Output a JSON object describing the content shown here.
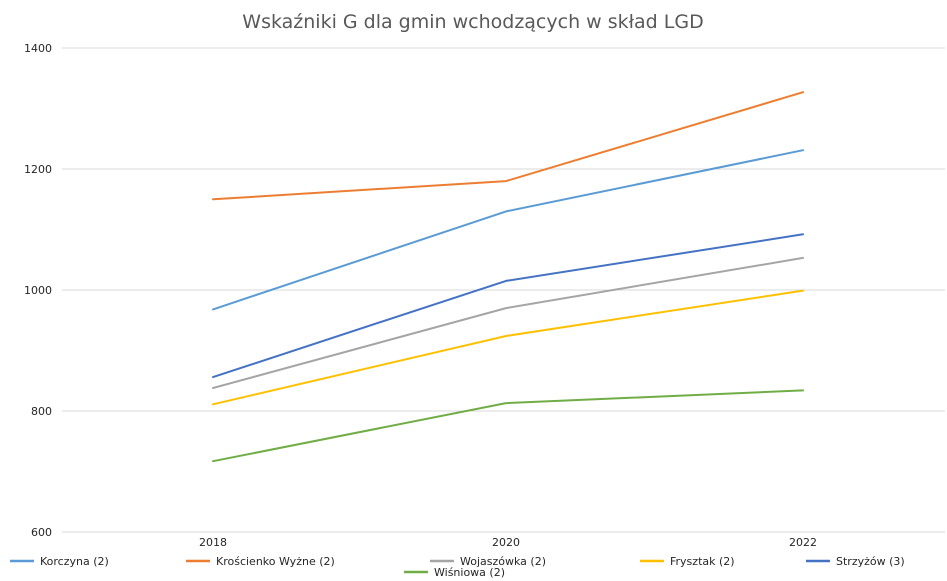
{
  "chart_data": {
    "type": "line",
    "title": "Wskaźniki G dla gmin wchodzących w skład LGD",
    "xlabel": "",
    "ylabel": "",
    "categories": [
      "2018",
      "2020",
      "2022"
    ],
    "ylim": [
      600,
      1400
    ],
    "yticks": [
      "600",
      "800",
      "1000",
      "1200",
      "1400"
    ],
    "grid": true,
    "legend_position": "bottom",
    "series": [
      {
        "name": "Korczyna (2)",
        "color": "#5b9bd5",
        "values": [
          968,
          1130,
          1231
        ]
      },
      {
        "name": "Krościenko Wyżne (2)",
        "color": "#ed7d31",
        "values": [
          1150,
          1180,
          1327
        ]
      },
      {
        "name": "Wojaszówka (2)",
        "color": "#a5a5a5",
        "values": [
          838,
          970,
          1053
        ]
      },
      {
        "name": "Frysztak (2)",
        "color": "#ffc000",
        "values": [
          811,
          924,
          999
        ]
      },
      {
        "name": "Strzyżów (3)",
        "color": "#4472c4",
        "values": [
          856,
          1015,
          1092
        ]
      },
      {
        "name": "Wiśniowa (2)",
        "color": "#70ad47",
        "values": [
          717,
          813,
          834
        ]
      }
    ]
  }
}
